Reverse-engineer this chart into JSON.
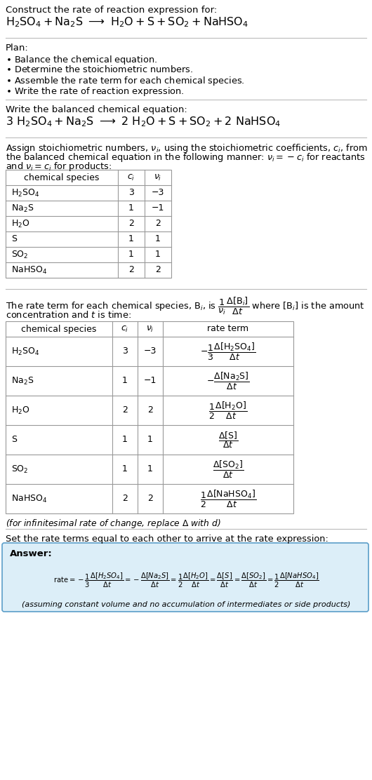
{
  "bg_color": "#ffffff",
  "table_border": "#999999",
  "answer_bg": "#dceef8",
  "answer_border": "#5b9ec9",
  "table1_species": [
    "H_2SO_4",
    "Na_2S",
    "H_2O",
    "S",
    "SO_2",
    "NaHSO_4"
  ],
  "table1_ci": [
    "3",
    "1",
    "2",
    "1",
    "1",
    "2"
  ],
  "table1_vi": [
    "-3",
    "-1",
    "2",
    "1",
    "1",
    "2"
  ],
  "table2_species": [
    "H_2SO_4",
    "Na_2S",
    "H_2O",
    "S",
    "SO_2",
    "NaHSO_4"
  ],
  "table2_ci": [
    "3",
    "1",
    "2",
    "1",
    "1",
    "2"
  ],
  "table2_vi": [
    "-3",
    "-1",
    "2",
    "1",
    "1",
    "2"
  ]
}
